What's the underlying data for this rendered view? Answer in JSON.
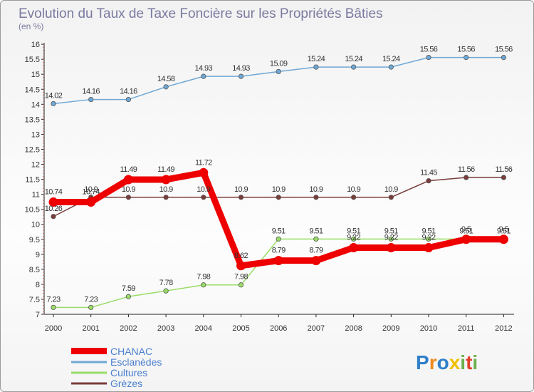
{
  "chart_data": {
    "type": "line",
    "title": "Evolution du Taux de Taxe Foncière sur les Propriétés Bâties",
    "subtitle": "(en %)",
    "x": [
      "2000",
      "2001",
      "2002",
      "2003",
      "2004",
      "2005",
      "2006",
      "2007",
      "2008",
      "2009",
      "2010",
      "2011",
      "2012"
    ],
    "ylim": [
      7,
      16
    ],
    "yticks": [
      "7",
      "7.5",
      "8",
      "8.5",
      "9",
      "9.5",
      "10",
      "10.5",
      "11",
      "11.5",
      "12",
      "12.5",
      "13",
      "13.5",
      "14",
      "14.5",
      "15",
      "15.5",
      "16"
    ],
    "grid": false,
    "legend_position": "bottom-left",
    "series": [
      {
        "name": "Esclanèdes",
        "color": "#6fa8d6",
        "values": [
          14.02,
          14.16,
          14.16,
          14.58,
          14.93,
          14.93,
          15.09,
          15.24,
          15.24,
          15.24,
          15.56,
          15.56,
          15.56
        ],
        "labels": [
          "14.02",
          "14.16",
          "14.16",
          "14.58",
          "14.93",
          "14.93",
          "15.09",
          "15.24",
          "15.24",
          "15.24",
          "15.56",
          "15.56",
          "15.56"
        ]
      },
      {
        "name": "Cultures",
        "color": "#99dd66",
        "values": [
          null,
          null,
          null,
          null,
          null,
          null,
          9.51,
          9.51,
          9.51,
          9.51,
          9.51,
          9.51,
          9.51
        ],
        "labels": [
          "7.23",
          "7.23",
          "7.59",
          "7.78",
          "7.98",
          "7.98",
          "9.51",
          "9.51",
          "9.51",
          "9.51",
          "9.51",
          "9.51",
          "9.51"
        ],
        "values_full": [
          7.23,
          7.23,
          7.59,
          7.78,
          7.98,
          7.98,
          9.51,
          9.51,
          9.51,
          9.51,
          9.51,
          9.51,
          9.51
        ]
      },
      {
        "name": "Grèzes",
        "color": "#7a3b3b",
        "values": [
          10.26,
          10.9,
          10.9,
          10.9,
          10.9,
          10.9,
          10.9,
          10.9,
          10.9,
          10.9,
          11.45,
          11.56,
          11.56
        ],
        "labels": [
          "10.26",
          "10.9",
          "10.9",
          "10.9",
          "10.9",
          "10.9",
          "10.9",
          "10.9",
          "10.9",
          "10.9",
          "11.45",
          "11.56",
          "11.56"
        ]
      },
      {
        "name": "CHANAC",
        "color": "#ee0000",
        "values": [
          10.74,
          10.74,
          11.49,
          11.49,
          11.72,
          8.62,
          8.79,
          8.79,
          9.22,
          9.22,
          9.22,
          9.5,
          9.5
        ],
        "labels": [
          "10.74",
          "10.74",
          "11.49",
          "11.49",
          "11.72",
          "8.62",
          "8.79",
          "8.79",
          "9.22",
          "9.22",
          "9.22",
          "9.5",
          "9.5"
        ]
      }
    ]
  },
  "legend": {
    "chanac": "CHANAC",
    "esclanedes": "Esclanèdes",
    "cultures": "Cultures",
    "grezes": "Grèzes"
  },
  "logo": {
    "text": "Proxiti"
  }
}
